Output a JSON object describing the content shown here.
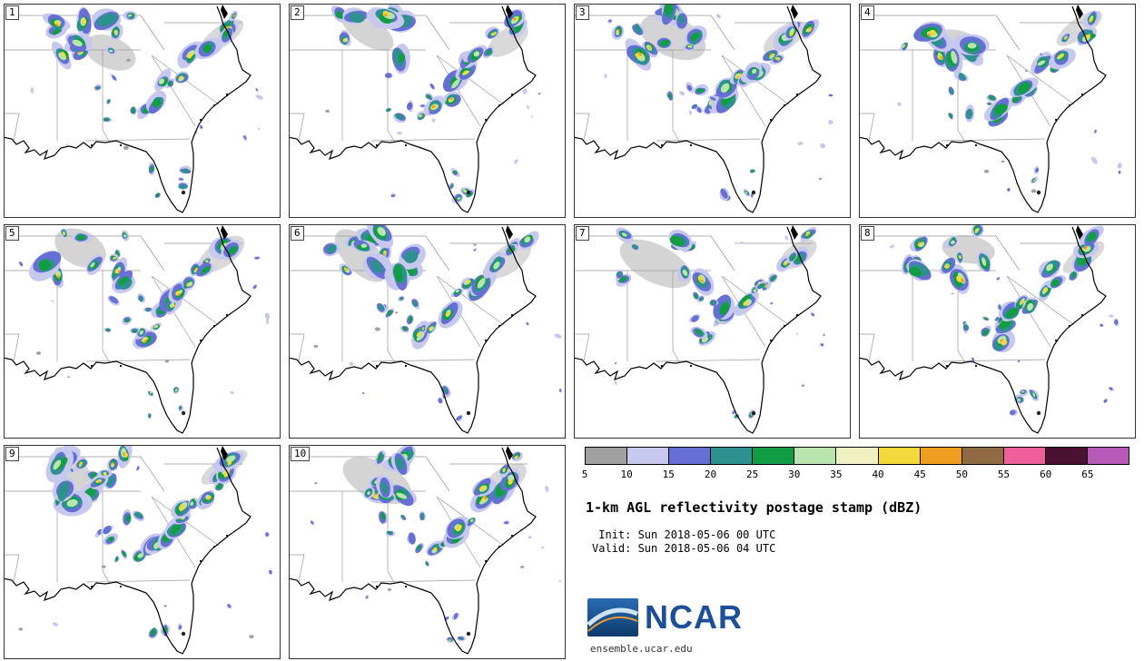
{
  "title": "1-km AGL reflectivity postage stamp (dBZ)",
  "init_line": " Init: Sun 2018-05-06 00 UTC",
  "valid_line": "Valid: Sun 2018-05-06 04 UTC",
  "footer": {
    "logo_text": "NCAR",
    "site_text": "ensemble.ucar.edu"
  },
  "panels": [
    {
      "id": "1"
    },
    {
      "id": "2"
    },
    {
      "id": "3"
    },
    {
      "id": "4"
    },
    {
      "id": "5"
    },
    {
      "id": "6"
    },
    {
      "id": "7"
    },
    {
      "id": "8"
    },
    {
      "id": "9"
    },
    {
      "id": "10"
    }
  ],
  "map_colors": {
    "background": "#ffffff",
    "coastline": "#000000",
    "state_borders": "#999999"
  },
  "chart_data": {
    "type": "heatmap",
    "title": "1-km AGL reflectivity postage stamp (dBZ)",
    "variable": "1-km AGL reflectivity",
    "units": "dBZ",
    "init": "Sun 2018-05-06 00 UTC",
    "valid": "Sun 2018-05-06 04 UTC",
    "panels": [
      "1",
      "2",
      "3",
      "4",
      "5",
      "6",
      "7",
      "8",
      "9",
      "10"
    ],
    "region": "southeastern United States",
    "legend_position": "bottom-right",
    "colorbar": {
      "ticks": [
        5,
        10,
        15,
        20,
        25,
        30,
        35,
        40,
        45,
        50,
        55,
        60,
        65
      ],
      "segment_colors": [
        "#a0a0a0",
        "#c7c8ee",
        "#6670d4",
        "#2f9090",
        "#129c44",
        "#b9e4ae",
        "#eff2c0",
        "#f5d83c",
        "#ef9f20",
        "#8f6a45",
        "#ee5f9b",
        "#4a1230",
        "#b75ab7"
      ]
    }
  }
}
